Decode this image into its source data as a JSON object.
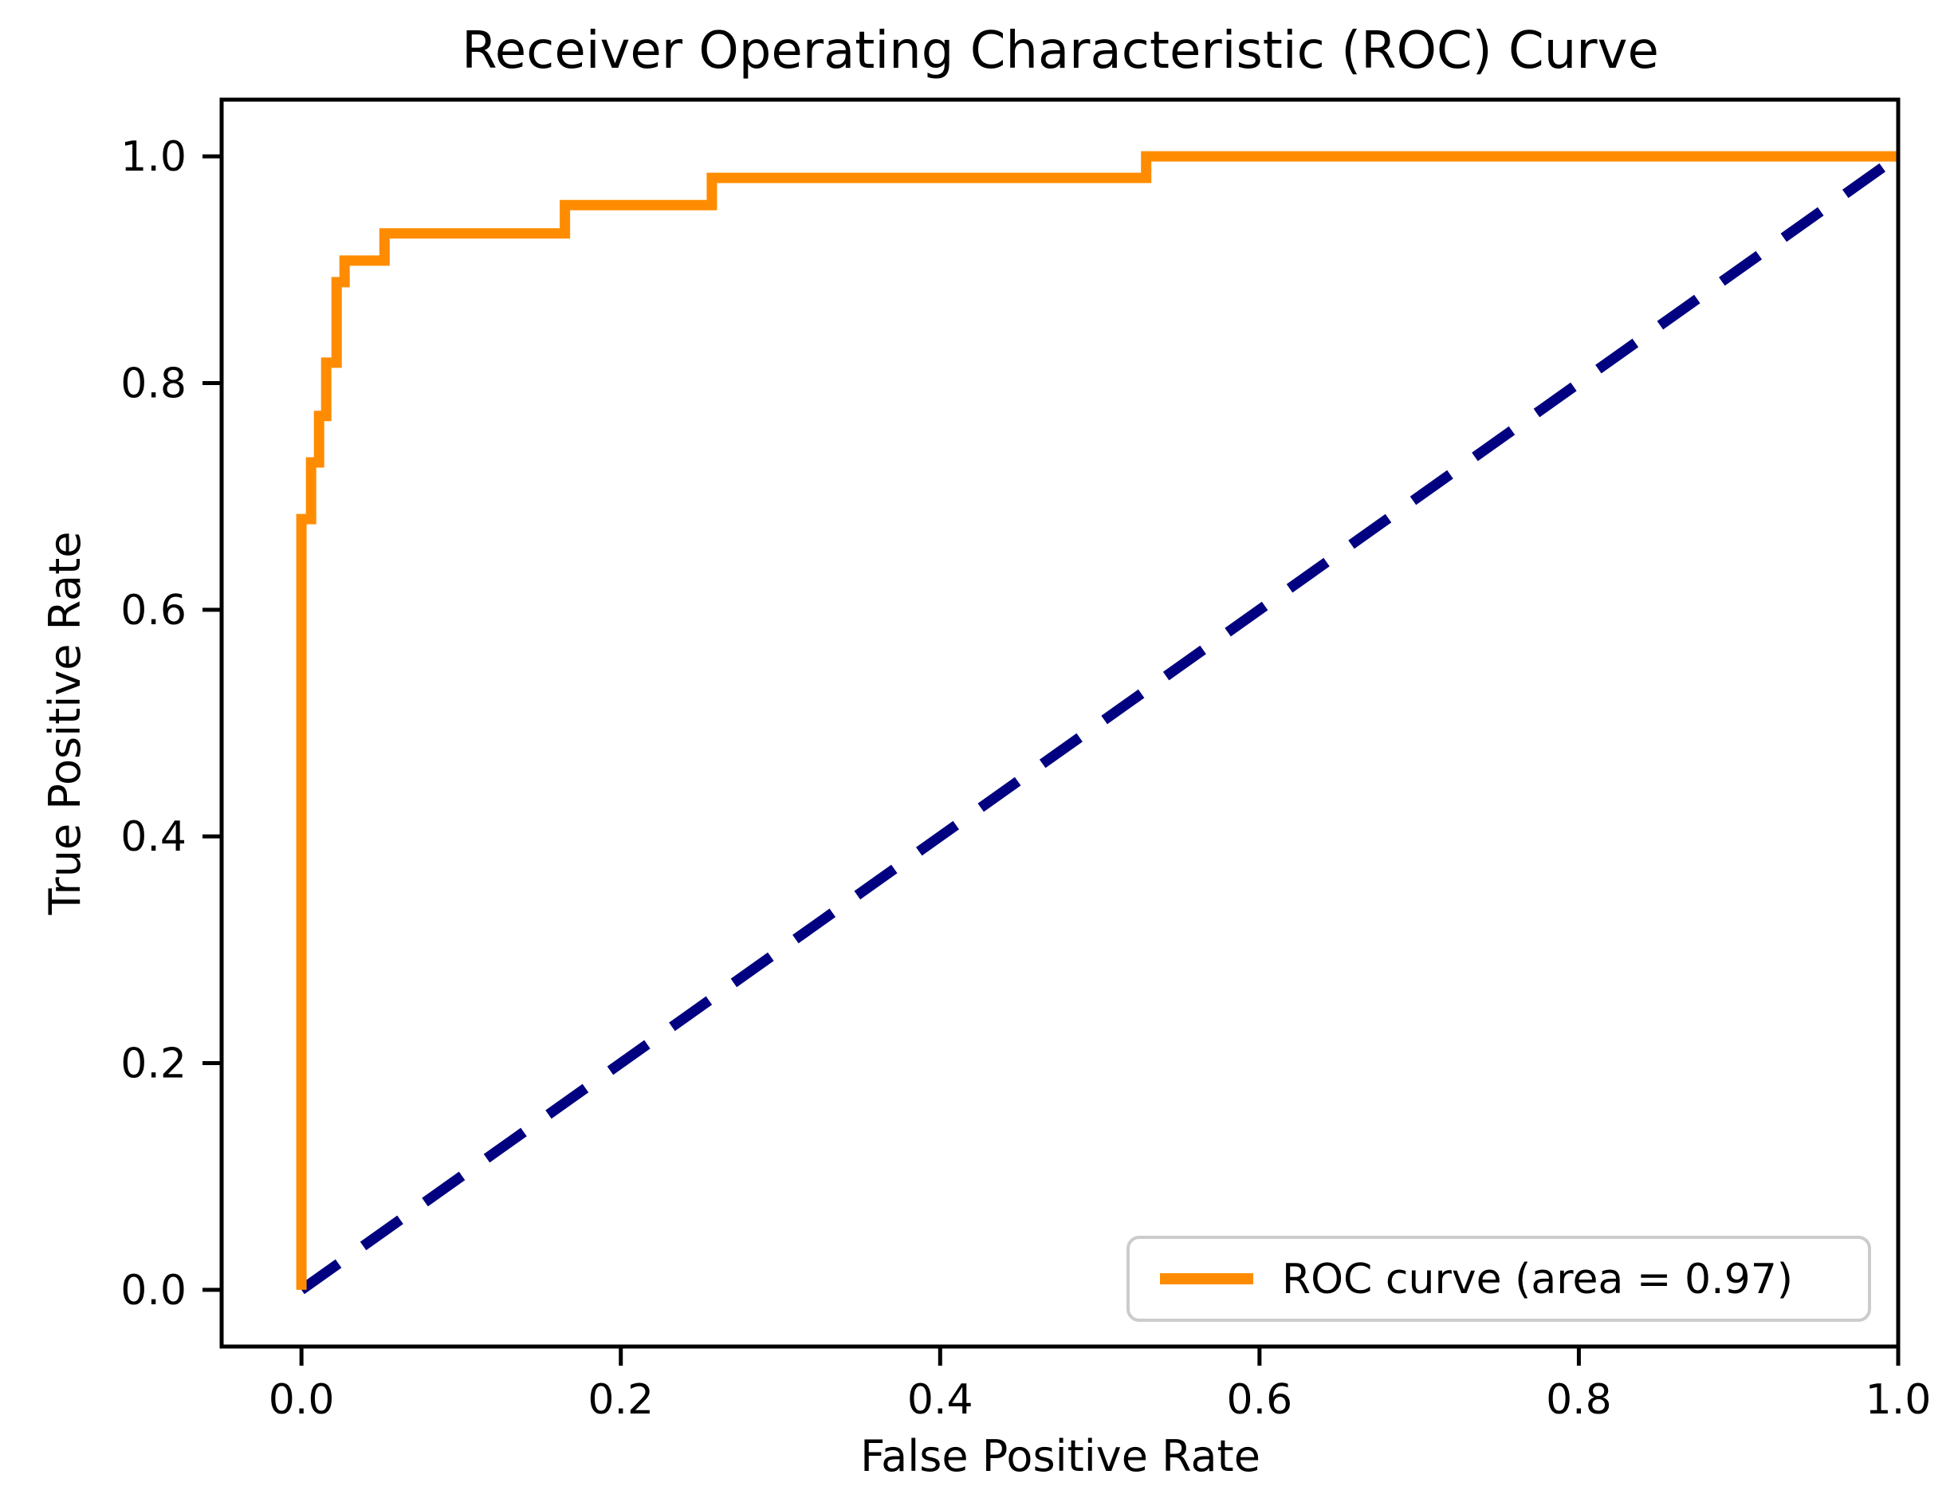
{
  "figure": {
    "title": "Receiver Operating Characteristic (ROC) Curve",
    "xlabel": "False Positive Rate",
    "ylabel": "True Positive Rate"
  },
  "legend": {
    "position": "lower right",
    "entries": [
      {
        "label": "ROC curve (area = 0.97)",
        "color": "#ff8c00",
        "style": "solid"
      }
    ]
  },
  "colors": {
    "roc_curve": "#ff8c00",
    "chance_line": "#000080",
    "axis": "#000000",
    "text": "#000000",
    "legend_border": "#cccccc",
    "legend_background": "#ffffff",
    "background": "#ffffff"
  },
  "chart_data": {
    "type": "line",
    "title": "Receiver Operating Characteristic (ROC) Curve",
    "xlabel": "False Positive Rate",
    "ylabel": "True Positive Rate",
    "xlim": [
      -0.05,
      1.0
    ],
    "ylim": [
      -0.05,
      1.05
    ],
    "x_ticks": [
      0.0,
      0.2,
      0.4,
      0.6,
      0.8,
      1.0
    ],
    "x_tick_labels": [
      "0.0",
      "0.2",
      "0.4",
      "0.6",
      "0.8",
      "1.0"
    ],
    "y_ticks": [
      0.0,
      0.2,
      0.4,
      0.6,
      0.8,
      1.0
    ],
    "y_tick_labels": [
      "0.0",
      "0.2",
      "0.4",
      "0.6",
      "0.8",
      "1.0"
    ],
    "grid": false,
    "legend_position": "lower right",
    "auc": 0.97,
    "series": [
      {
        "name": "ROC curve (area = 0.97)",
        "color": "#ff8c00",
        "line_style": "solid",
        "line_width": 13,
        "step": true,
        "points": [
          [
            0.0,
            0.0
          ],
          [
            0.0,
            0.68
          ],
          [
            0.006,
            0.68
          ],
          [
            0.006,
            0.73
          ],
          [
            0.011,
            0.73
          ],
          [
            0.011,
            0.771
          ],
          [
            0.0155,
            0.771
          ],
          [
            0.0155,
            0.818
          ],
          [
            0.022,
            0.818
          ],
          [
            0.022,
            0.889
          ],
          [
            0.027,
            0.889
          ],
          [
            0.027,
            0.908
          ],
          [
            0.052,
            0.908
          ],
          [
            0.052,
            0.932
          ],
          [
            0.165,
            0.932
          ],
          [
            0.165,
            0.957
          ],
          [
            0.257,
            0.957
          ],
          [
            0.257,
            0.981
          ],
          [
            0.529,
            0.981
          ],
          [
            0.529,
            1.0
          ],
          [
            1.0,
            1.0
          ]
        ]
      },
      {
        "name": "chance-diagonal",
        "color": "#000080",
        "line_style": "dashed",
        "line_width": 13,
        "step": false,
        "points": [
          [
            0.0,
            0.0
          ],
          [
            1.0,
            1.0
          ]
        ]
      }
    ]
  }
}
